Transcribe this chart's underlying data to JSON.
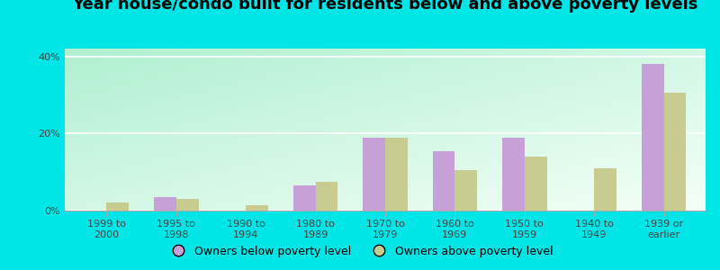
{
  "title": "Year house/condo built for residents below and above poverty levels",
  "categories": [
    "1999 to\n2000",
    "1995 to\n1998",
    "1990 to\n1994",
    "1980 to\n1989",
    "1970 to\n1979",
    "1960 to\n1969",
    "1950 to\n1959",
    "1940 to\n1949",
    "1939 or\nearlier"
  ],
  "below_poverty": [
    0.0,
    3.5,
    0.0,
    6.5,
    19.0,
    15.5,
    19.0,
    0.0,
    38.0
  ],
  "above_poverty": [
    2.0,
    3.0,
    1.5,
    7.5,
    19.0,
    10.5,
    14.0,
    11.0,
    30.5
  ],
  "below_color": "#c8a0d8",
  "above_color": "#c8cc90",
  "bg_color_topleft": "#b0f0d0",
  "bg_color_bottomright": "#f0fff8",
  "outer_bg": "#00e5e5",
  "ylim": [
    0,
    42
  ],
  "yticks": [
    0,
    20,
    40
  ],
  "ytick_labels": [
    "0%",
    "20%",
    "40%"
  ],
  "bar_width": 0.32,
  "legend_below_label": "Owners below poverty level",
  "legend_above_label": "Owners above poverty level",
  "title_fontsize": 13,
  "tick_fontsize": 8,
  "legend_fontsize": 9
}
